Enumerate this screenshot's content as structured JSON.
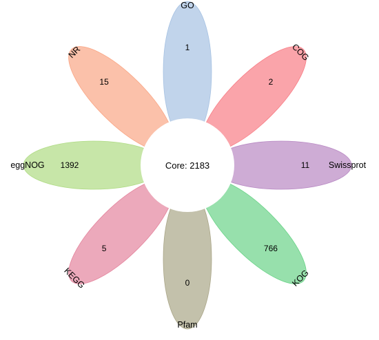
{
  "core": {
    "label": "Core: 2183"
  },
  "petals": [
    {
      "name": "GO",
      "count": "1",
      "color": "#9fbde0"
    },
    {
      "name": "COG",
      "count": "2",
      "color": "#f7737c"
    },
    {
      "name": "Swissprot",
      "count": "11",
      "color": "#b37fbf"
    },
    {
      "name": "KOG",
      "count": "766",
      "color": "#5fd07f"
    },
    {
      "name": "Pfam",
      "count": "0",
      "color": "#a39f7e"
    },
    {
      "name": "KEGG",
      "count": "5",
      "color": "#e27b96"
    },
    {
      "name": "eggNOG",
      "count": "1392",
      "color": "#a9d87a"
    },
    {
      "name": "NR",
      "count": "15",
      "color": "#f9a07c"
    }
  ]
}
